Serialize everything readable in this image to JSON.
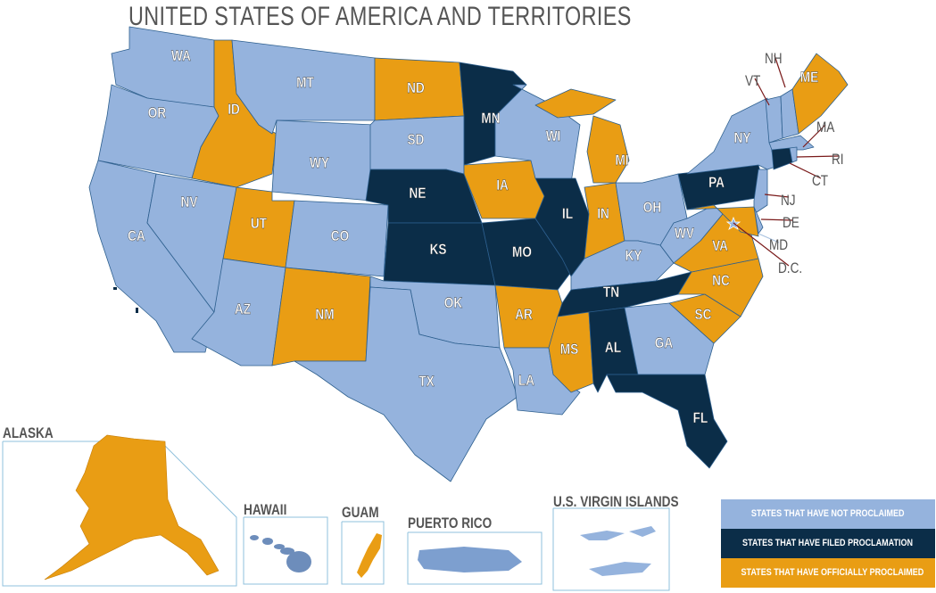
{
  "title": "UNITED STATES OF AMERICA AND TERRITORIES",
  "colors": {
    "not_proclaimed": "#95B3DD",
    "filed": "#0B2D48",
    "proclaimed": "#E99D14",
    "label": "#555555",
    "leader": "#7A1A1A"
  },
  "states": [
    {
      "code": "WA",
      "status": "not_proclaimed"
    },
    {
      "code": "OR",
      "status": "not_proclaimed"
    },
    {
      "code": "CA",
      "status": "not_proclaimed"
    },
    {
      "code": "NV",
      "status": "not_proclaimed"
    },
    {
      "code": "ID",
      "status": "proclaimed"
    },
    {
      "code": "MT",
      "status": "not_proclaimed"
    },
    {
      "code": "WY",
      "status": "not_proclaimed"
    },
    {
      "code": "UT",
      "status": "proclaimed"
    },
    {
      "code": "CO",
      "status": "not_proclaimed"
    },
    {
      "code": "AZ",
      "status": "not_proclaimed"
    },
    {
      "code": "NM",
      "status": "proclaimed"
    },
    {
      "code": "ND",
      "status": "proclaimed"
    },
    {
      "code": "SD",
      "status": "not_proclaimed"
    },
    {
      "code": "NE",
      "status": "filed"
    },
    {
      "code": "KS",
      "status": "filed"
    },
    {
      "code": "OK",
      "status": "not_proclaimed"
    },
    {
      "code": "TX",
      "status": "not_proclaimed"
    },
    {
      "code": "MN",
      "status": "filed"
    },
    {
      "code": "IA",
      "status": "proclaimed"
    },
    {
      "code": "MO",
      "status": "filed"
    },
    {
      "code": "AR",
      "status": "proclaimed"
    },
    {
      "code": "LA",
      "status": "not_proclaimed"
    },
    {
      "code": "WI",
      "status": "not_proclaimed"
    },
    {
      "code": "IL",
      "status": "filed"
    },
    {
      "code": "MI",
      "status": "proclaimed"
    },
    {
      "code": "IN",
      "status": "proclaimed"
    },
    {
      "code": "OH",
      "status": "not_proclaimed"
    },
    {
      "code": "KY",
      "status": "not_proclaimed"
    },
    {
      "code": "TN",
      "status": "filed"
    },
    {
      "code": "MS",
      "status": "proclaimed"
    },
    {
      "code": "AL",
      "status": "filed"
    },
    {
      "code": "GA",
      "status": "not_proclaimed"
    },
    {
      "code": "FL",
      "status": "filed"
    },
    {
      "code": "SC",
      "status": "proclaimed"
    },
    {
      "code": "NC",
      "status": "proclaimed"
    },
    {
      "code": "VA",
      "status": "proclaimed"
    },
    {
      "code": "WV",
      "status": "not_proclaimed"
    },
    {
      "code": "PA",
      "status": "filed"
    },
    {
      "code": "NY",
      "status": "not_proclaimed"
    },
    {
      "code": "NJ",
      "status": "not_proclaimed"
    },
    {
      "code": "DE",
      "status": "not_proclaimed"
    },
    {
      "code": "MD",
      "status": "proclaimed"
    },
    {
      "code": "VT",
      "status": "not_proclaimed"
    },
    {
      "code": "NH",
      "status": "not_proclaimed"
    },
    {
      "code": "ME",
      "status": "proclaimed"
    },
    {
      "code": "MA",
      "status": "not_proclaimed"
    },
    {
      "code": "CT",
      "status": "filed"
    },
    {
      "code": "RI",
      "status": "not_proclaimed"
    },
    {
      "code": "D.C.",
      "status": "not_proclaimed"
    }
  ],
  "territories": [
    {
      "name": "ALASKA",
      "status": "proclaimed"
    },
    {
      "name": "HAWAII",
      "status": "not_proclaimed"
    },
    {
      "name": "GUAM",
      "status": "proclaimed"
    },
    {
      "name": "PUERTO RICO",
      "status": "not_proclaimed"
    },
    {
      "name": "U.S. VIRGIN ISLANDS",
      "status": "not_proclaimed"
    }
  ],
  "legend": [
    {
      "label": "STATES THAT HAVE NOT PROCLAIMED",
      "status": "not_proclaimed"
    },
    {
      "label": "STATES THAT HAVE FILED PROCLAMATION",
      "status": "filed"
    },
    {
      "label": "STATES THAT HAVE OFFICIALLY PROCLAIMED",
      "status": "proclaimed"
    }
  ]
}
